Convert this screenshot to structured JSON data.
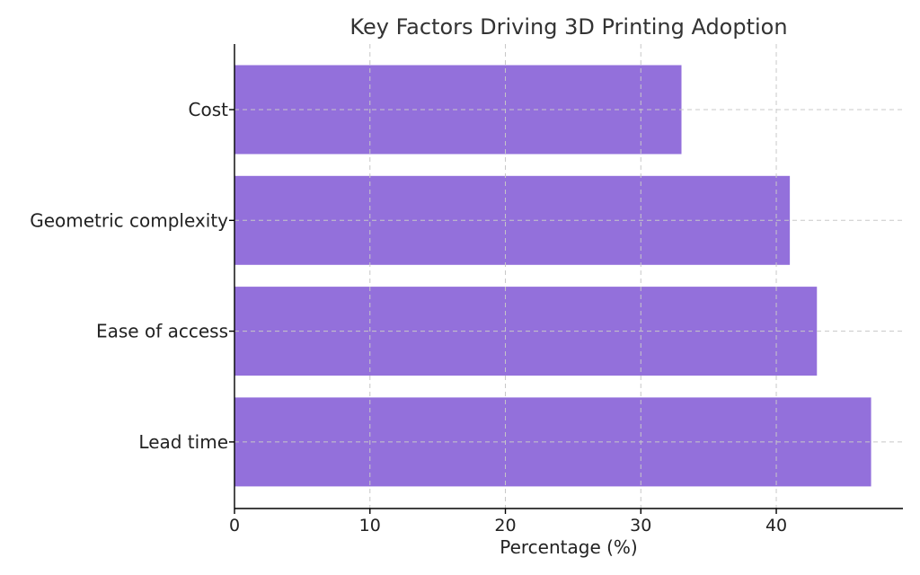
{
  "chart_data": {
    "type": "bar",
    "orientation": "horizontal",
    "title": "Key Factors Driving 3D Printing Adoption",
    "xlabel": "Percentage (%)",
    "ylabel": "",
    "categories": [
      "Cost",
      "Geometric complexity",
      "Ease of access",
      "Lead time"
    ],
    "values": [
      33,
      41,
      43,
      47
    ],
    "xlim": [
      0,
      49.35
    ],
    "xticks": [
      0,
      10,
      20,
      30,
      40
    ],
    "grid": true,
    "bar_color": "#9370DB"
  }
}
